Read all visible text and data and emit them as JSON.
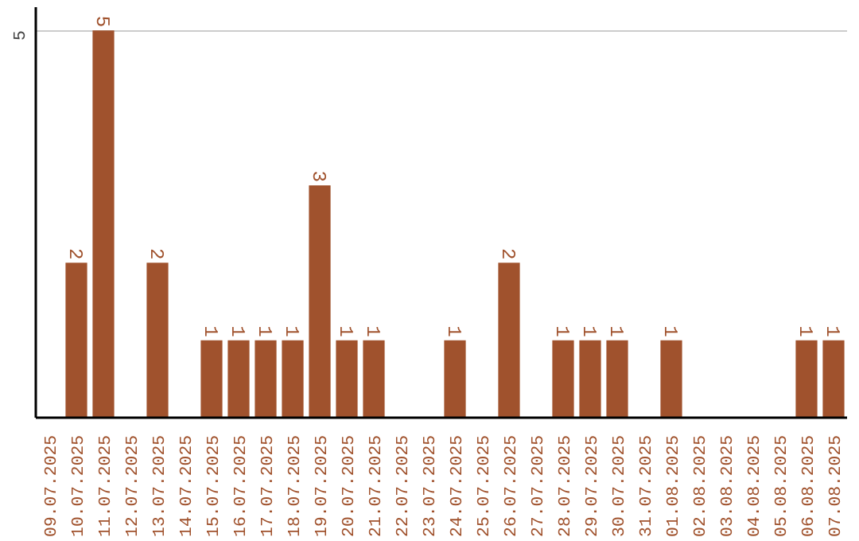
{
  "chart_data": {
    "type": "bar",
    "categories": [
      "09.07.2025",
      "10.07.2025",
      "11.07.2025",
      "12.07.2025",
      "13.07.2025",
      "14.07.2025",
      "15.07.2025",
      "16.07.2025",
      "17.07.2025",
      "18.07.2025",
      "19.07.2025",
      "20.07.2025",
      "21.07.2025",
      "22.07.2025",
      "23.07.2025",
      "24.07.2025",
      "25.07.2025",
      "26.07.2025",
      "27.07.2025",
      "28.07.2025",
      "29.07.2025",
      "30.07.2025",
      "31.07.2025",
      "01.08.2025",
      "02.08.2025",
      "03.08.2025",
      "04.08.2025",
      "05.08.2025",
      "06.08.2025",
      "07.08.2025"
    ],
    "values": [
      null,
      2,
      5,
      null,
      2,
      null,
      1,
      1,
      1,
      1,
      3,
      1,
      1,
      null,
      null,
      1,
      null,
      2,
      null,
      1,
      1,
      1,
      null,
      1,
      null,
      null,
      null,
      null,
      1,
      1
    ],
    "color": "#a0522d",
    "ylim": [
      0,
      5.3
    ],
    "yticks": [
      5
    ],
    "grid": "y",
    "data_labels": true
  }
}
